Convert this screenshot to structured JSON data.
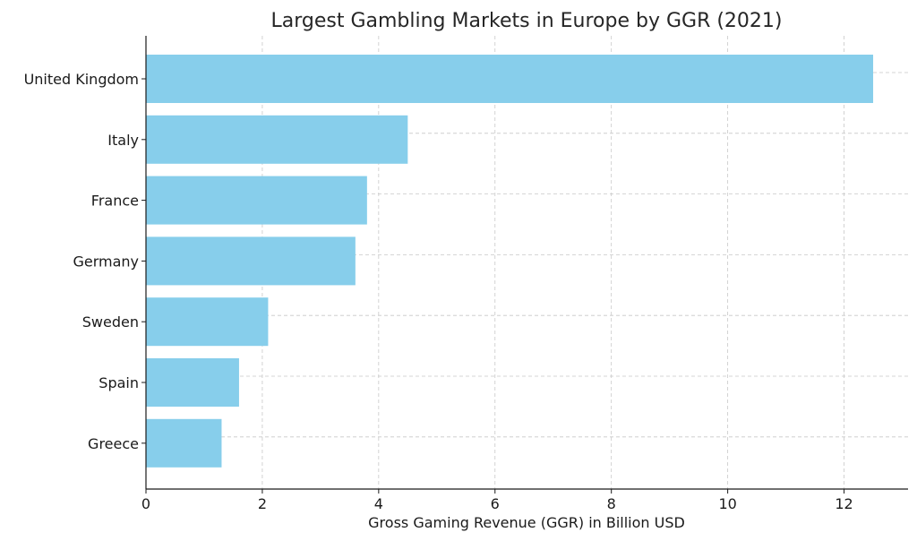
{
  "chart_data": {
    "type": "bar",
    "orientation": "horizontal",
    "title": "Largest Gambling Markets in Europe by GGR (2021)",
    "xlabel": "Gross Gaming Revenue (GGR) in Billion USD",
    "ylabel": "",
    "categories": [
      "United Kingdom",
      "Italy",
      "France",
      "Germany",
      "Sweden",
      "Spain",
      "Greece"
    ],
    "values": [
      12.5,
      4.5,
      3.8,
      3.6,
      2.1,
      1.6,
      1.3
    ],
    "xlim": [
      0,
      13.1
    ],
    "xticks": [
      0,
      2,
      4,
      6,
      8,
      10,
      12
    ],
    "grid": true,
    "bar_color": "#87CEEB"
  }
}
